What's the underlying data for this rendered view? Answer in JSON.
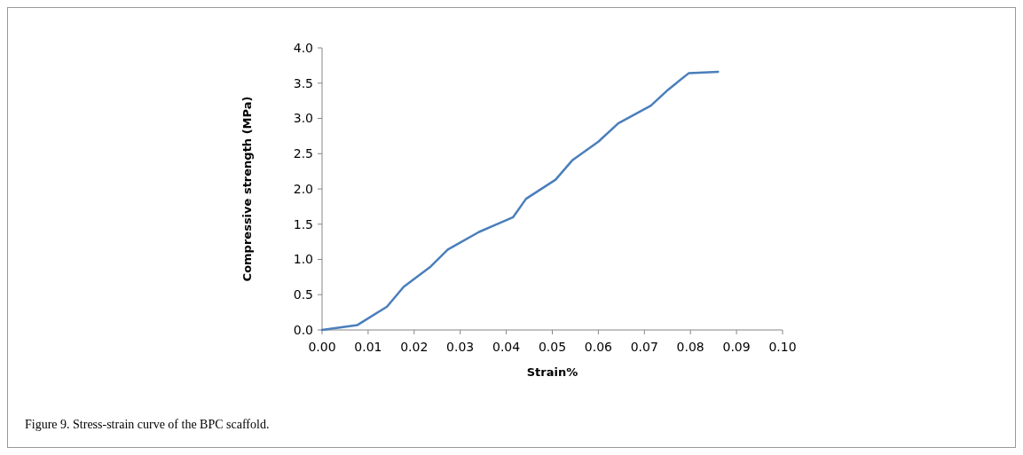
{
  "chart_data": {
    "type": "line",
    "xlabel": "Strain%",
    "ylabel": "Compressive strength (MPa)",
    "annotations": [
      "Figure 9. Stress-strain curve of the BPC scaffold."
    ],
    "x": [
      0,
      0.0077,
      0.0141,
      0.0177,
      0.0236,
      0.0273,
      0.0341,
      0.0415,
      0.0443,
      0.0507,
      0.0544,
      0.06,
      0.0643,
      0.0714,
      0.0752,
      0.0796,
      0.086
    ],
    "series": [
      {
        "color": "#4a7ebb",
        "values": [
          0,
          0.07,
          0.33,
          0.61,
          0.9,
          1.14,
          1.39,
          1.6,
          1.86,
          2.13,
          2.41,
          2.67,
          2.93,
          3.18,
          3.41,
          3.64,
          3.66
        ]
      }
    ],
    "xlim": [
      0,
      0.1
    ],
    "xticks": [
      {
        "value": 0,
        "label": "0.00"
      },
      {
        "value": 0.01,
        "label": "0.01"
      },
      {
        "value": 0.02,
        "label": "0.02"
      },
      {
        "value": 0.03,
        "label": "0.03"
      },
      {
        "value": 0.04,
        "label": "0.04"
      },
      {
        "value": 0.05,
        "label": "0.05"
      },
      {
        "value": 0.06,
        "label": "0.06"
      },
      {
        "value": 0.07,
        "label": "0.07"
      },
      {
        "value": 0.08,
        "label": "0.08"
      },
      {
        "value": 0.09,
        "label": "0.09"
      },
      {
        "value": 0.1,
        "label": "0.10"
      }
    ],
    "ylim": [
      0,
      4
    ],
    "yticks": [
      {
        "value": 0,
        "label": "0.0"
      },
      {
        "value": 0.5,
        "label": "0.5"
      },
      {
        "value": 1,
        "label": "1.0"
      },
      {
        "value": 1.5,
        "label": "1.5"
      },
      {
        "value": 2,
        "label": "2.0"
      },
      {
        "value": 2.5,
        "label": "2.5"
      },
      {
        "value": 3,
        "label": "3.0"
      },
      {
        "value": 3.5,
        "label": "3.5"
      },
      {
        "value": 4,
        "label": "4.0"
      }
    ],
    "grid": false,
    "marker": "none",
    "line_style": "solid"
  }
}
